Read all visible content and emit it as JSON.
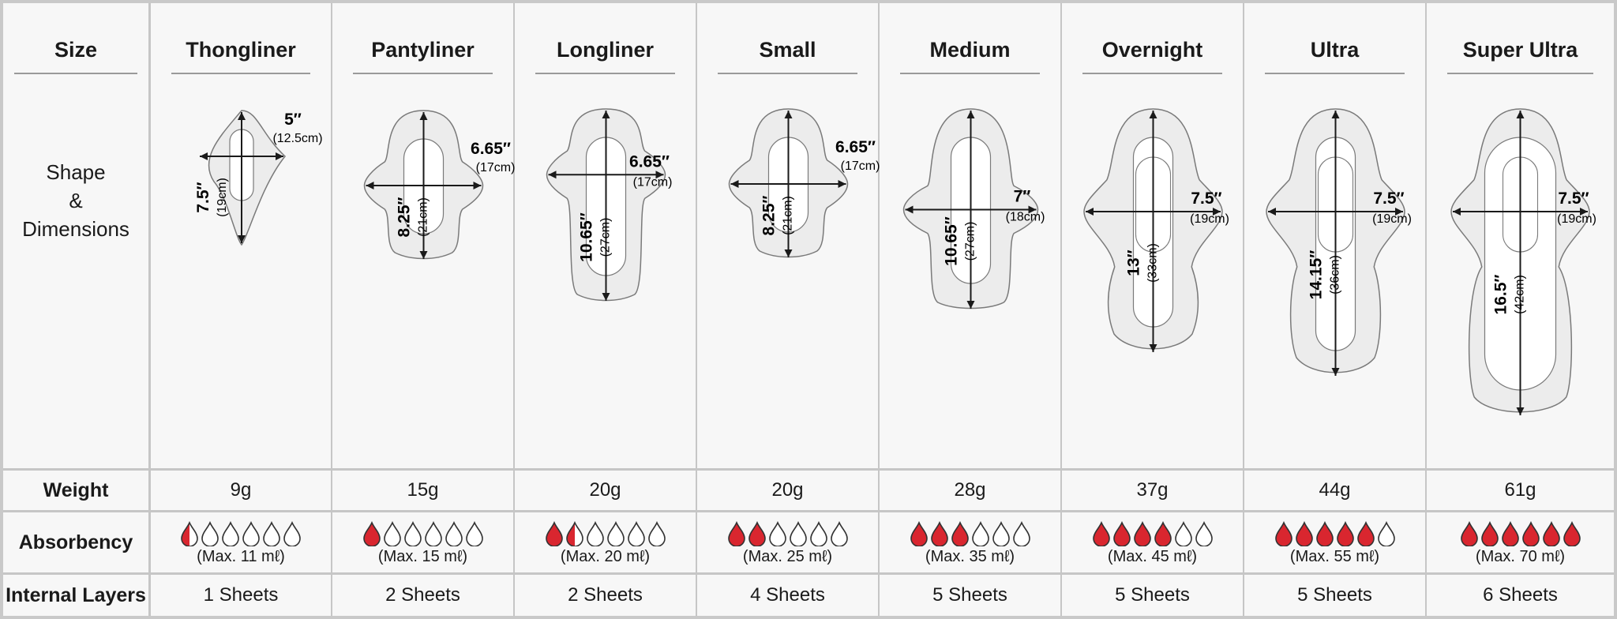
{
  "row_labels": {
    "size": "Size",
    "shape_line1": "Shape",
    "shape_line2": "&",
    "shape_line3": "Dimensions",
    "weight": "Weight",
    "absorbency": "Absorbency",
    "layers": "Internal Layers"
  },
  "colors": {
    "drop_fill": "#d9262f",
    "pad_fill": "#ececec",
    "pad_stroke": "#7a7a7a",
    "divider": "#c6c6c6"
  },
  "products": [
    {
      "name": "Thongliner",
      "width_in": "5″",
      "width_cm": "(12.5cm)",
      "length_in": "7.5″",
      "length_cm": "(19cm)",
      "weight": "9g",
      "drops": 0.5,
      "max": "(Max. 11 mℓ)",
      "layers": "1 Sheets"
    },
    {
      "name": "Pantyliner",
      "width_in": "6.65″",
      "width_cm": "(17cm)",
      "length_in": "8.25″",
      "length_cm": "(21cm)",
      "weight": "15g",
      "drops": 1,
      "max": "(Max. 15 mℓ)",
      "layers": "2 Sheets"
    },
    {
      "name": "Longliner",
      "width_in": "6.65″",
      "width_cm": "(17cm)",
      "length_in": "10.65″",
      "length_cm": "(27cm)",
      "weight": "20g",
      "drops": 1.5,
      "max": "(Max. 20 mℓ)",
      "layers": "2 Sheets"
    },
    {
      "name": "Small",
      "width_in": "6.65″",
      "width_cm": "(17cm)",
      "length_in": "8.25″",
      "length_cm": "(21cm)",
      "weight": "20g",
      "drops": 2,
      "max": "(Max. 25 mℓ)",
      "layers": "4 Sheets"
    },
    {
      "name": "Medium",
      "width_in": "7″",
      "width_cm": "(18cm)",
      "length_in": "10.65″",
      "length_cm": "(27cm)",
      "weight": "28g",
      "drops": 3,
      "max": "(Max. 35 mℓ)",
      "layers": "5 Sheets"
    },
    {
      "name": "Overnight",
      "width_in": "7.5″",
      "width_cm": "(19cm)",
      "length_in": "13″",
      "length_cm": "(33cm)",
      "weight": "37g",
      "drops": 4,
      "max": "(Max. 45 mℓ)",
      "layers": "5 Sheets"
    },
    {
      "name": "Ultra",
      "width_in": "7.5″",
      "width_cm": "(19cm)",
      "length_in": "14.15″",
      "length_cm": "(36cm)",
      "weight": "44g",
      "drops": 5,
      "max": "(Max. 55 mℓ)",
      "layers": "5 Sheets"
    },
    {
      "name": "Super Ultra",
      "width_in": "7.5″",
      "width_cm": "(19cm)",
      "length_in": "16.5″",
      "length_cm": "(42cm)",
      "weight": "61g",
      "drops": 6,
      "max": "(Max. 70 mℓ)",
      "layers": "6 Sheets"
    }
  ]
}
